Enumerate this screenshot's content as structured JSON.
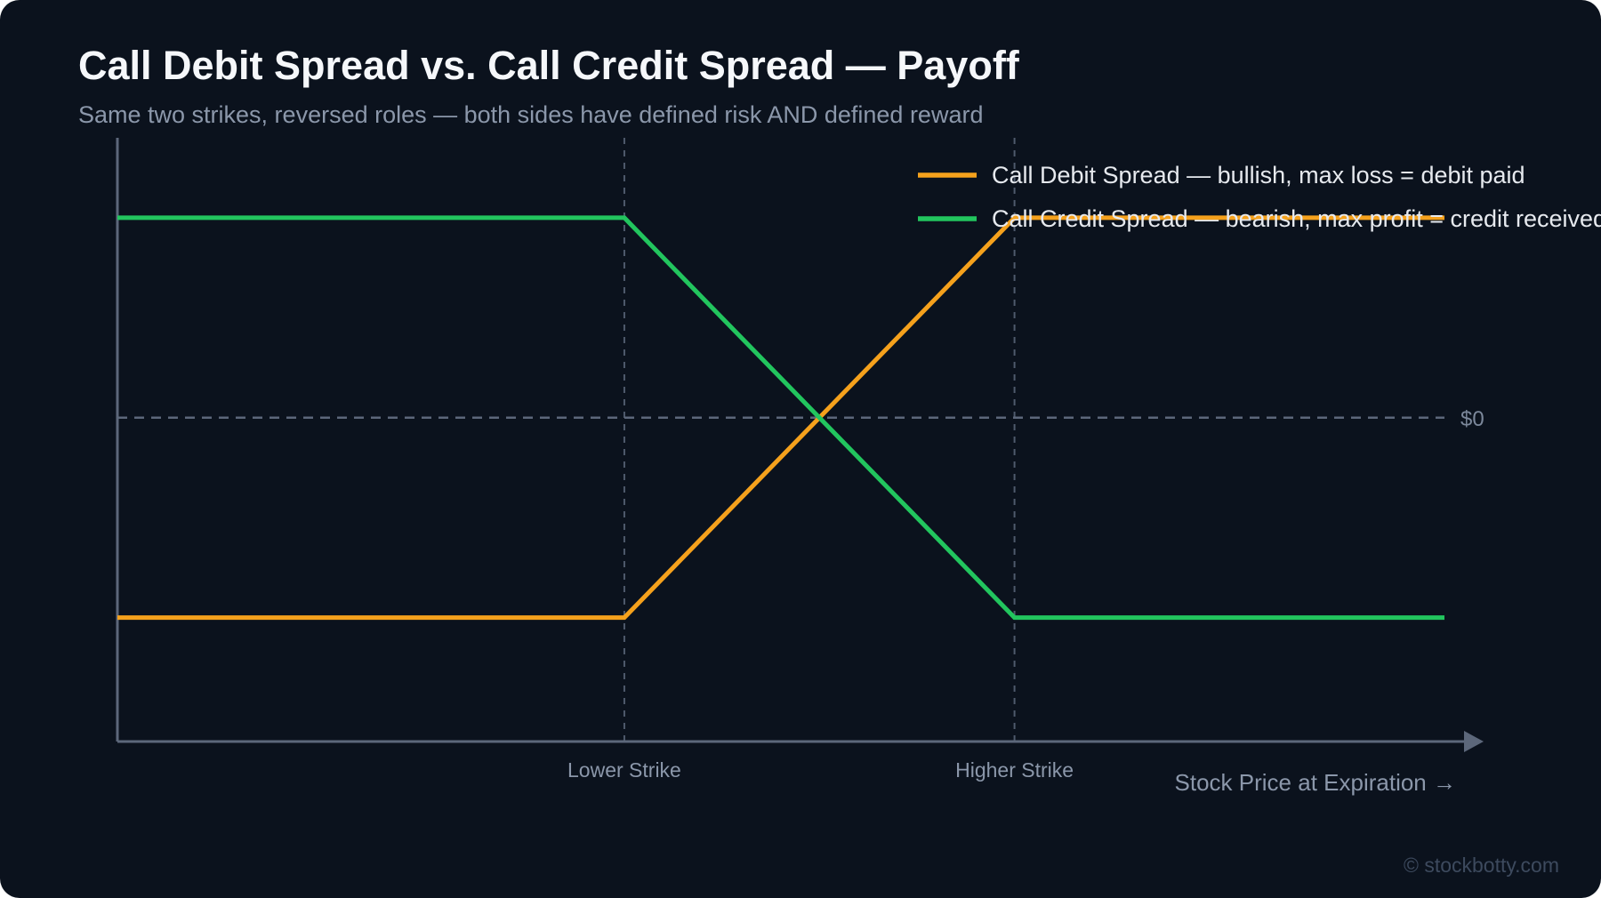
{
  "header": {
    "title": "Call Debit Spread vs. Call Credit Spread — Payoff",
    "subtitle": "Same two strikes, reversed roles — both sides have defined risk AND defined reward"
  },
  "footer": {
    "copyright": "© stockbotty.com"
  },
  "colors": {
    "background": "#0b121d",
    "debit": "#f5a11c",
    "credit": "#22c55e",
    "axis": "#5c677a",
    "guide": "#4f5a6c",
    "muted_text": "#8b97aa",
    "legend_text": "#e6e9ee"
  },
  "chart_data": {
    "type": "line",
    "title": "Call Debit Spread vs. Call Credit Spread — Payoff",
    "subtitle": "Same two strikes, reversed roles — both sides have defined risk AND defined reward",
    "xlabel": "Stock Price at Expiration →",
    "ylabel": "",
    "x_ticks": [
      "Lower Strike",
      "Higher Strike"
    ],
    "zero_label": "$0",
    "legend_position": "top-right",
    "grid": false,
    "xlim": [
      0,
      100
    ],
    "ylim": [
      -1.62,
      1.4
    ],
    "strikes": [
      38.2,
      67.6
    ],
    "series": [
      {
        "name": "Call Debit Spread — bullish, max loss = debit paid",
        "color": "#f5a11c",
        "x": [
          0,
          38.2,
          67.6,
          100
        ],
        "y": [
          -1,
          -1,
          1,
          1
        ]
      },
      {
        "name": "Call Credit Spread — bearish, max profit = credit received",
        "color": "#22c55e",
        "x": [
          0,
          38.2,
          67.6,
          100
        ],
        "y": [
          1,
          1,
          -1,
          -1
        ]
      }
    ]
  }
}
